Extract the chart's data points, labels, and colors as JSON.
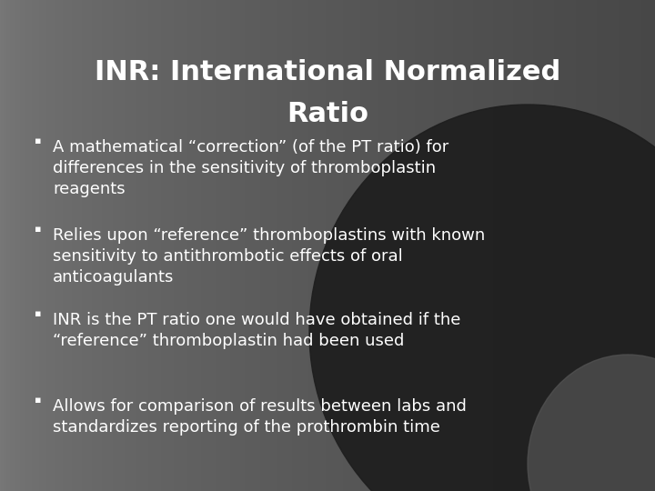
{
  "title_line1": "INR: International Normalized",
  "title_line2": "Ratio",
  "title_fontsize": 22,
  "title_color": "#ffffff",
  "bullet_fontsize": 13,
  "bullet_color": "#ffffff",
  "bullet_symbol": "●",
  "bullets": [
    "A mathematical “correction” (of the PT ratio) for\ndifferences in the sensitivity of thromboplastin\nreagents",
    "Relies upon “reference” thromboplastins with known\nsensitivity to antithrombotic effects of oral\nanticoagulants",
    "INR is the PT ratio one would have obtained if the\n“reference” thromboplastin had been used",
    "Allows for comparison of results between labs and\nstandardizes reporting of the prothrombin time"
  ],
  "figwidth": 7.2,
  "figheight": 5.4,
  "dpi": 100
}
